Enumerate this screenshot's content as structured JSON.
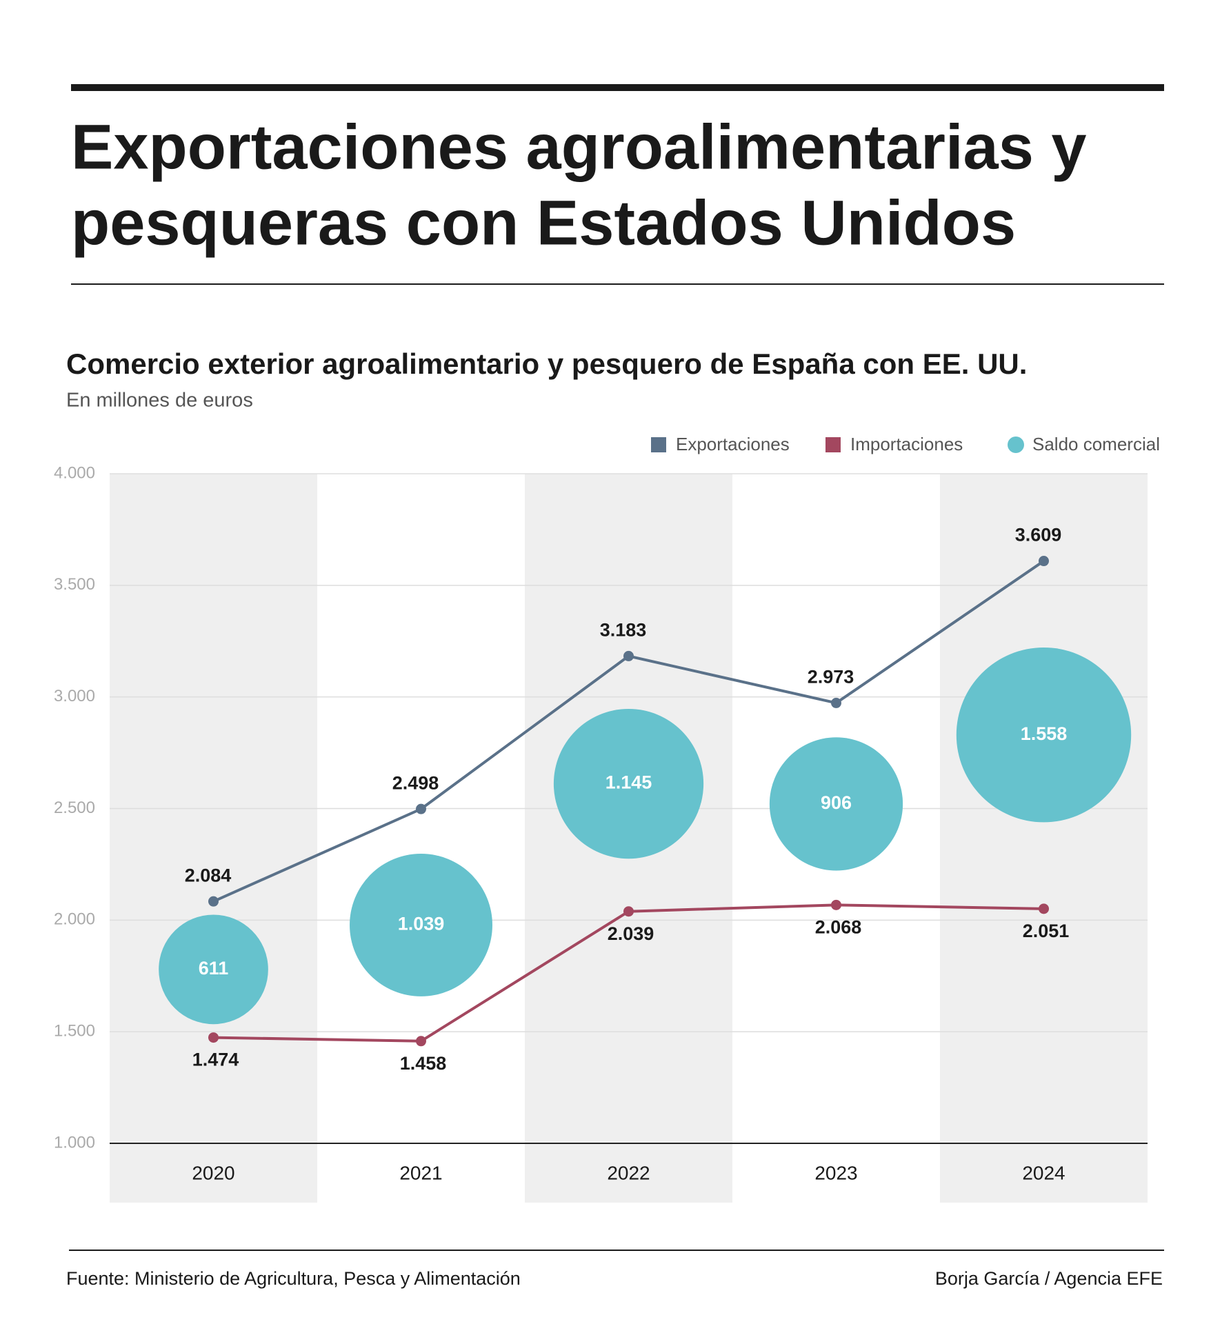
{
  "header": {
    "title_lines": [
      "Exportaciones agroalimentarias y",
      "pesqueras con Estados Unidos"
    ]
  },
  "chart_data": {
    "type": "line",
    "title": "Comercio exterior agroalimentario y pesquero de España con EE. UU.",
    "subtitle": "En millones de euros",
    "categories": [
      "2020",
      "2021",
      "2022",
      "2023",
      "2024"
    ],
    "series": [
      {
        "name": "Exportaciones",
        "color": "#5a7189",
        "values": [
          2084,
          2498,
          3183,
          2973,
          3609
        ],
        "value_labels": [
          "2.084",
          "2.498",
          "3.183",
          "2.973",
          "3.609"
        ]
      },
      {
        "name": "Importaciones",
        "color": "#a3475f",
        "values": [
          1474,
          1458,
          2039,
          2068,
          2051
        ],
        "value_labels": [
          "1.474",
          "1.458",
          "2.039",
          "2.068",
          "2.051"
        ]
      }
    ],
    "bubbles": {
      "name": "Saldo comercial",
      "color": "#66c2cd",
      "values": [
        611,
        1039,
        1145,
        906,
        1558
      ],
      "value_labels": [
        "611",
        "1.039",
        "1.145",
        "906",
        "1.558"
      ]
    },
    "ylim": [
      1000,
      4000
    ],
    "yticks": [
      {
        "value": 1000,
        "label": "1.000"
      },
      {
        "value": 1500,
        "label": "1.500"
      },
      {
        "value": 2000,
        "label": "2.000"
      },
      {
        "value": 2500,
        "label": "2.500"
      },
      {
        "value": 3000,
        "label": "3.000"
      },
      {
        "value": 3500,
        "label": "3.500"
      },
      {
        "value": 4000,
        "label": "4.000"
      }
    ],
    "grid": true,
    "legend": "top-right"
  },
  "footer": {
    "source": "Fuente: Ministerio de Agricultura, Pesca y Alimentación",
    "credit": "Borja García / Agencia EFE"
  }
}
